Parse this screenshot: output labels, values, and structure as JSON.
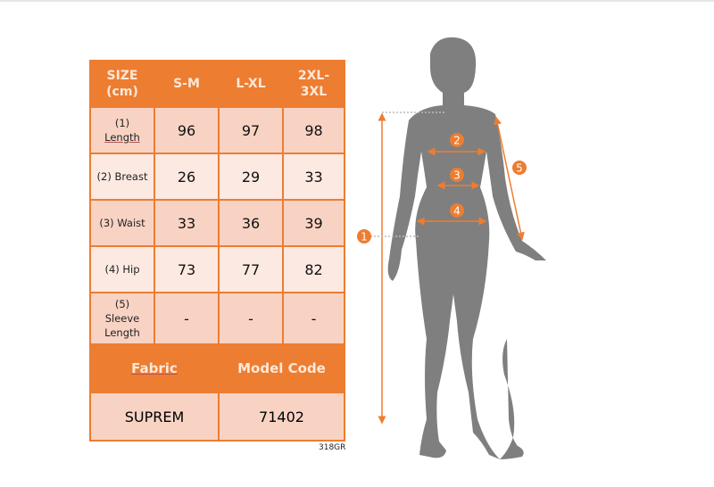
{
  "table": {
    "headers": [
      "SIZE (cm)",
      "S-M",
      "L-XL",
      "2XL-3XL"
    ],
    "rows": [
      {
        "label_num": "(1)",
        "label": "Length",
        "values": [
          "96",
          "97",
          "98"
        ]
      },
      {
        "label": "(2) Breast",
        "values": [
          "26",
          "29",
          "33"
        ]
      },
      {
        "label": "(3) Waist",
        "values": [
          "33",
          "36",
          "39"
        ]
      },
      {
        "label": "(4) Hip",
        "values": [
          "73",
          "77",
          "82"
        ]
      },
      {
        "label_num": "(5)",
        "label": "Sleeve Length",
        "values": [
          "-",
          "-",
          "-"
        ]
      }
    ],
    "footer_headers": [
      "Fabric",
      "Model Code"
    ],
    "footer_values": [
      "SUPREM",
      "71402"
    ]
  },
  "product_code": "318GR",
  "figure": {
    "markers": [
      "1",
      "2",
      "3",
      "4",
      "5"
    ]
  },
  "colors": {
    "accent": "#ed7d31",
    "row_dark": "#f8d3c4",
    "row_light": "#fbe9e2",
    "silhouette": "#7f7f7f"
  }
}
